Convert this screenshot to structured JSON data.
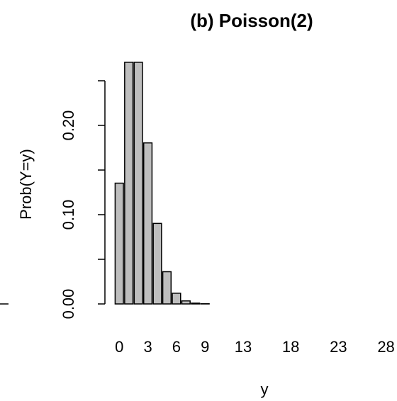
{
  "chart_data": {
    "type": "bar",
    "title": "(b) Poisson(2)",
    "xlabel": "y",
    "ylabel": "Prob(Y=y)",
    "x": [
      0,
      1,
      2,
      3,
      4,
      5,
      6,
      7,
      8,
      9,
      10,
      11,
      12,
      13,
      14,
      15,
      16,
      17,
      18,
      19,
      20,
      21,
      22,
      23,
      24,
      25,
      26,
      27,
      28,
      29,
      30,
      31
    ],
    "values": [
      0.1353,
      0.2707,
      0.2707,
      0.1804,
      0.0902,
      0.0361,
      0.012,
      0.0034,
      0.0009,
      0.0002,
      0,
      0,
      0,
      0,
      0,
      0,
      0,
      0,
      0,
      0,
      0,
      0,
      0,
      0,
      0,
      0,
      0,
      0,
      0,
      0,
      0,
      0
    ],
    "x_tick_labels": [
      "0",
      "3",
      "6",
      "9",
      "13",
      "18",
      "23",
      "28"
    ],
    "y_ticks": [
      0,
      0.05,
      0.1,
      0.15,
      0.2,
      0.25
    ],
    "y_tick_labels": [
      "0.00",
      "0.10",
      "0.20"
    ],
    "ylim": [
      0,
      0.27
    ],
    "grid": false,
    "colors": {
      "bar_fill": "#bebebe",
      "bar_stroke": "#000000"
    }
  }
}
